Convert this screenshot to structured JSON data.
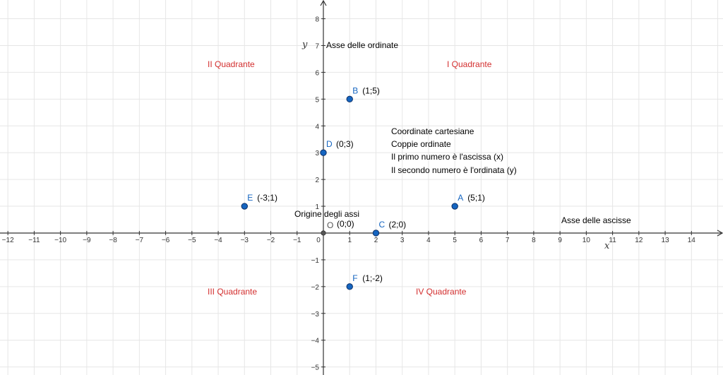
{
  "colors": {
    "grid": "#e6e6e6",
    "axis": "#333333",
    "quadrant_text": "#d32f2f",
    "point_fill": "#1565c0",
    "point_stroke": "#0d2f66",
    "origin_fill": "#555555",
    "point_label": "#1565c0"
  },
  "chart_data": {
    "type": "scatter",
    "xlim": [
      -12.3,
      15.2
    ],
    "ylim": [
      -5.3,
      8.7
    ],
    "grid": true,
    "x_ticks": [
      -12,
      -11,
      -10,
      -9,
      -8,
      -7,
      -6,
      -5,
      -4,
      -3,
      -2,
      -1,
      0,
      1,
      2,
      3,
      4,
      5,
      6,
      7,
      8,
      9,
      10,
      11,
      12,
      13,
      14
    ],
    "y_ticks": [
      -5,
      -4,
      -3,
      -2,
      -1,
      1,
      2,
      3,
      4,
      5,
      6,
      7,
      8
    ],
    "xlabel": "x",
    "ylabel": "y",
    "points": [
      {
        "name": "A",
        "x": 5,
        "y": 1,
        "coord": "(5;1)"
      },
      {
        "name": "B",
        "x": 1,
        "y": 5,
        "coord": "(1;5)"
      },
      {
        "name": "C",
        "x": 2,
        "y": 0,
        "coord": "(2;0)"
      },
      {
        "name": "D",
        "x": 0,
        "y": 3,
        "coord": "(0;3)"
      },
      {
        "name": "E",
        "x": -3,
        "y": 1,
        "coord": "(-3;1)"
      },
      {
        "name": "F",
        "x": 1,
        "y": -2,
        "coord": "(1;-2)"
      }
    ],
    "origin": {
      "name": "O",
      "x": 0,
      "y": 0,
      "coord": "(0;0)"
    }
  },
  "annotations": {
    "y_axis_name": "Asse delle ordinate",
    "x_axis_name": "Asse delle ascisse",
    "origin_name": "Origine degli assi",
    "info_lines": [
      "Coordinate cartesiane",
      "Coppie ordinate",
      "Il primo numero è l'ascissa (x)",
      "Il secondo numero è l'ordinata (y)"
    ]
  },
  "quadrants": {
    "q1": "I Quadrante",
    "q2": "II Quadrante",
    "q3": "III Quadrante",
    "q4": "IV Quadrante"
  }
}
